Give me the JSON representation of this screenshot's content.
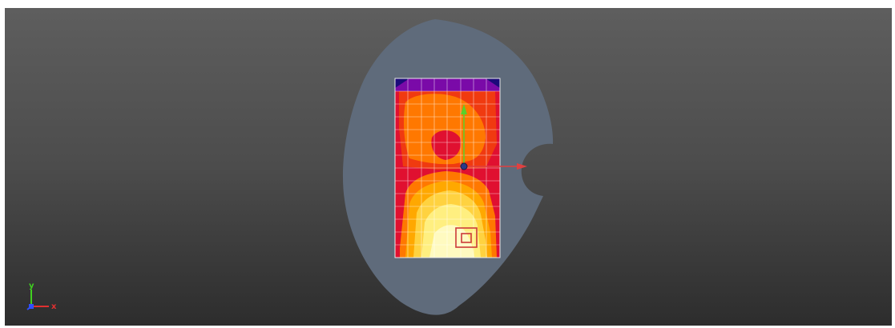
{
  "viewport": {
    "background_top": "#5e5e5e",
    "background_bottom": "#2d2d2d"
  },
  "model": {
    "body_color": "#5f6b7b",
    "grid_line_color": "#ffffff",
    "colormap": [
      "#1b0a7a",
      "#7a0aa8",
      "#e01030",
      "#f03a10",
      "#ff7800",
      "#ffa800",
      "#ffd240",
      "#ffef80",
      "#fffac0"
    ],
    "marker_color": "#cc3a3a",
    "pivot_color": "#2a3a8a"
  },
  "manipulator": {
    "x_axis_color": "#e04040",
    "y_axis_color": "#5ad02a"
  },
  "axis_triad": {
    "x_label": "x",
    "y_label": "y",
    "x_color": "#e03030",
    "y_color": "#40d020",
    "z_color": "#3050ff"
  }
}
